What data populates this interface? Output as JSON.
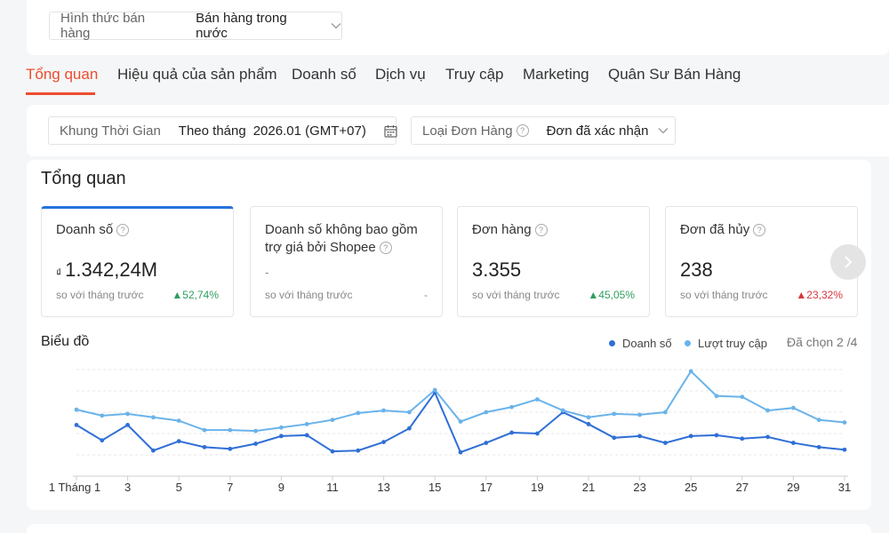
{
  "sales_type": {
    "label": "Hình thức bán hàng",
    "value": "Bán hàng trong nước"
  },
  "tabs": [
    "Tổng quan",
    "Hiệu quả của sản phẩm",
    "Doanh số",
    "Dịch vụ",
    "Truy cập",
    "Marketing",
    "Quân Sư Bán Hàng"
  ],
  "filters": {
    "time_label": "Khung Thời Gian",
    "time_mode": "Theo tháng",
    "time_value": "2026.01 (GMT+07)",
    "order_type_label": "Loại Đơn Hàng",
    "order_type_value": "Đơn đã xác nhận"
  },
  "overview": {
    "title": "Tổng quan",
    "cards": [
      {
        "title": "Doanh số",
        "currency": "₫",
        "value": "1.342,24M",
        "compare": "so với tháng trước",
        "change": "52,74%",
        "trend": "up"
      },
      {
        "title": "Doanh số không bao gồm trợ giá bởi Shopee",
        "value": "-",
        "compare": "so với tháng trước",
        "change": "-"
      },
      {
        "title": "Đơn hàng",
        "value": "3.355",
        "compare": "so với tháng trước",
        "change": "45,05%",
        "trend": "up"
      },
      {
        "title": "Đơn đã hủy",
        "value": "238",
        "compare": "so với tháng trước",
        "change": "23,32%",
        "trend": "down"
      }
    ]
  },
  "chart_section": {
    "title": "Biểu đồ",
    "selected": "Đã chọn 2 /4"
  },
  "colors": {
    "accent": "#ee4d2d",
    "sales_line": "#2f6fd6",
    "visits_line": "#6ab3ea",
    "up": "#2f9e5d",
    "down": "#d9363e"
  },
  "icons": {
    "dropdown": "chevron-down-icon",
    "calendar": "calendar-icon",
    "help": "help-circle-icon",
    "next": "chevron-right-icon"
  },
  "chart_data": {
    "type": "line",
    "x": [
      1,
      2,
      3,
      4,
      5,
      6,
      7,
      8,
      9,
      10,
      11,
      12,
      13,
      14,
      15,
      16,
      17,
      18,
      19,
      20,
      21,
      22,
      23,
      24,
      25,
      26,
      27,
      28,
      29,
      30,
      31
    ],
    "xtick_labels": [
      "1 Tháng 1",
      "3",
      "5",
      "7",
      "9",
      "11",
      "13",
      "15",
      "17",
      "19",
      "21",
      "23",
      "25",
      "27",
      "29",
      "31"
    ],
    "series": [
      {
        "name": "Doanh số",
        "values": [
          35,
          17,
          35,
          5,
          16,
          9,
          7,
          13,
          22,
          23,
          4,
          5,
          15,
          31,
          73,
          3,
          14,
          26,
          25,
          50,
          36,
          20,
          22,
          14,
          22,
          23,
          19,
          21,
          14,
          9,
          6
        ]
      },
      {
        "name": "Lượt truy cập",
        "values": [
          53,
          46,
          48,
          44,
          40,
          29,
          29,
          28,
          32,
          36,
          41,
          49,
          52,
          50,
          76,
          39,
          50,
          56,
          65,
          52,
          44,
          48,
          47,
          50,
          98,
          69,
          68,
          52,
          55,
          41,
          38
        ]
      }
    ],
    "ylim": [
      0,
      100
    ],
    "grid": true
  }
}
